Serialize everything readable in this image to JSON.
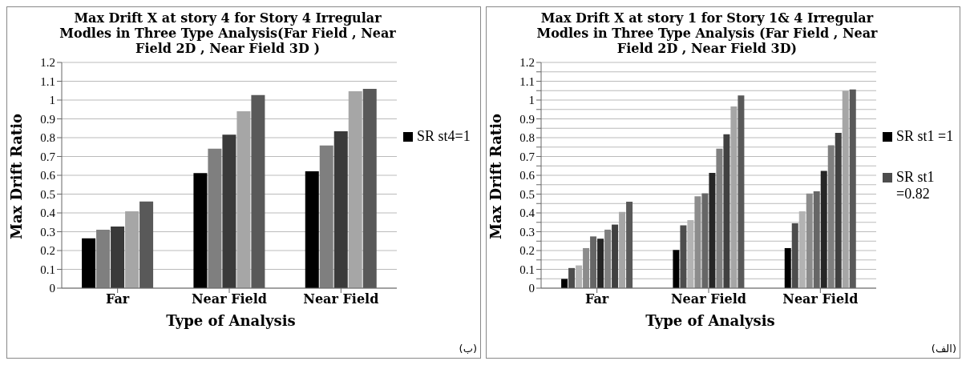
{
  "chart_data": [
    {
      "type": "bar",
      "title": "Max Drift X at story 4 for Story 4 Irregular Modles in Three Type Analysis(Far Field , Near Field 2D , Near Field 3D )",
      "xlabel": "Type of Analysis",
      "ylabel": "Max Drift Ratio",
      "categories": [
        "Far",
        "Near Field",
        "Near Field"
      ],
      "series": [
        {
          "name": "SR st4=1",
          "color": "#000000",
          "values": [
            0.265,
            0.612,
            0.621
          ]
        },
        {
          "color": "#7f7f7f",
          "values": [
            0.311,
            0.741,
            0.758
          ]
        },
        {
          "color": "#3a3a3a",
          "values": [
            0.328,
            0.816,
            0.834
          ]
        },
        {
          "color": "#a6a6a6",
          "values": [
            0.408,
            0.94,
            1.047
          ]
        },
        {
          "color": "#595959",
          "values": [
            0.461,
            1.027,
            1.06
          ]
        }
      ],
      "ylim": [
        0,
        1.2
      ],
      "yticks": [
        0,
        0.1,
        0.2,
        0.3,
        0.4,
        0.5,
        0.6,
        0.7,
        0.8,
        0.9,
        1,
        1.1,
        1.2
      ],
      "grid": "y",
      "legend": "right",
      "annotations": [
        "(ب)"
      ]
    },
    {
      "type": "bar",
      "title": "Max Drift X at story 1 for Story 1& 4 Irregular Modles in Three Type Analysis (Far Field , Near Field 2D , Near Field 3D)",
      "xlabel": "Type of Analysis",
      "ylabel": "Max Drift Ratio",
      "categories": [
        "Far",
        "Near Field",
        "Near Field"
      ],
      "series": [
        {
          "name": "SR st1 =1",
          "color": "#000000",
          "values": [
            0.049,
            0.203,
            0.213
          ]
        },
        {
          "name": "SR st1 =0.82",
          "color": "#4d4d4d",
          "values": [
            0.107,
            0.334,
            0.345
          ]
        },
        {
          "color": "#b3b3b3",
          "values": [
            0.121,
            0.362,
            0.408
          ]
        },
        {
          "color": "#8c8c8c",
          "values": [
            0.213,
            0.488,
            0.503
          ]
        },
        {
          "color": "#666666",
          "values": [
            0.275,
            0.504,
            0.515
          ]
        },
        {
          "color": "#262626",
          "values": [
            0.263,
            0.613,
            0.623
          ]
        },
        {
          "color": "#7f7f7f",
          "values": [
            0.311,
            0.742,
            0.76
          ]
        },
        {
          "color": "#404040",
          "values": [
            0.338,
            0.818,
            0.826
          ]
        },
        {
          "color": "#a6a6a6",
          "values": [
            0.405,
            0.966,
            1.049
          ]
        },
        {
          "color": "#595959",
          "values": [
            0.46,
            1.024,
            1.056
          ]
        }
      ],
      "ylim": [
        0,
        1.2
      ],
      "yticks": [
        0,
        {
          "value": 0.05,
          "label": null
        },
        0.1,
        {
          "value": 0.15,
          "label": null
        },
        0.2,
        {
          "value": 0.25,
          "label": null
        },
        0.3,
        {
          "value": 0.35,
          "label": null
        },
        0.4,
        {
          "value": 0.45,
          "label": null
        },
        0.5,
        {
          "value": 0.55,
          "label": null
        },
        0.6,
        {
          "value": 0.65,
          "label": null
        },
        0.7,
        {
          "value": 0.75,
          "label": null
        },
        0.8,
        {
          "value": 0.85,
          "label": null
        },
        0.9,
        {
          "value": 0.95,
          "label": null
        },
        1,
        {
          "value": 1.05,
          "label": null
        },
        1.1,
        {
          "value": 1.15,
          "label": null
        },
        1.2
      ],
      "grid": "y",
      "legend": "right",
      "annotations": [
        "(الف)"
      ]
    }
  ]
}
